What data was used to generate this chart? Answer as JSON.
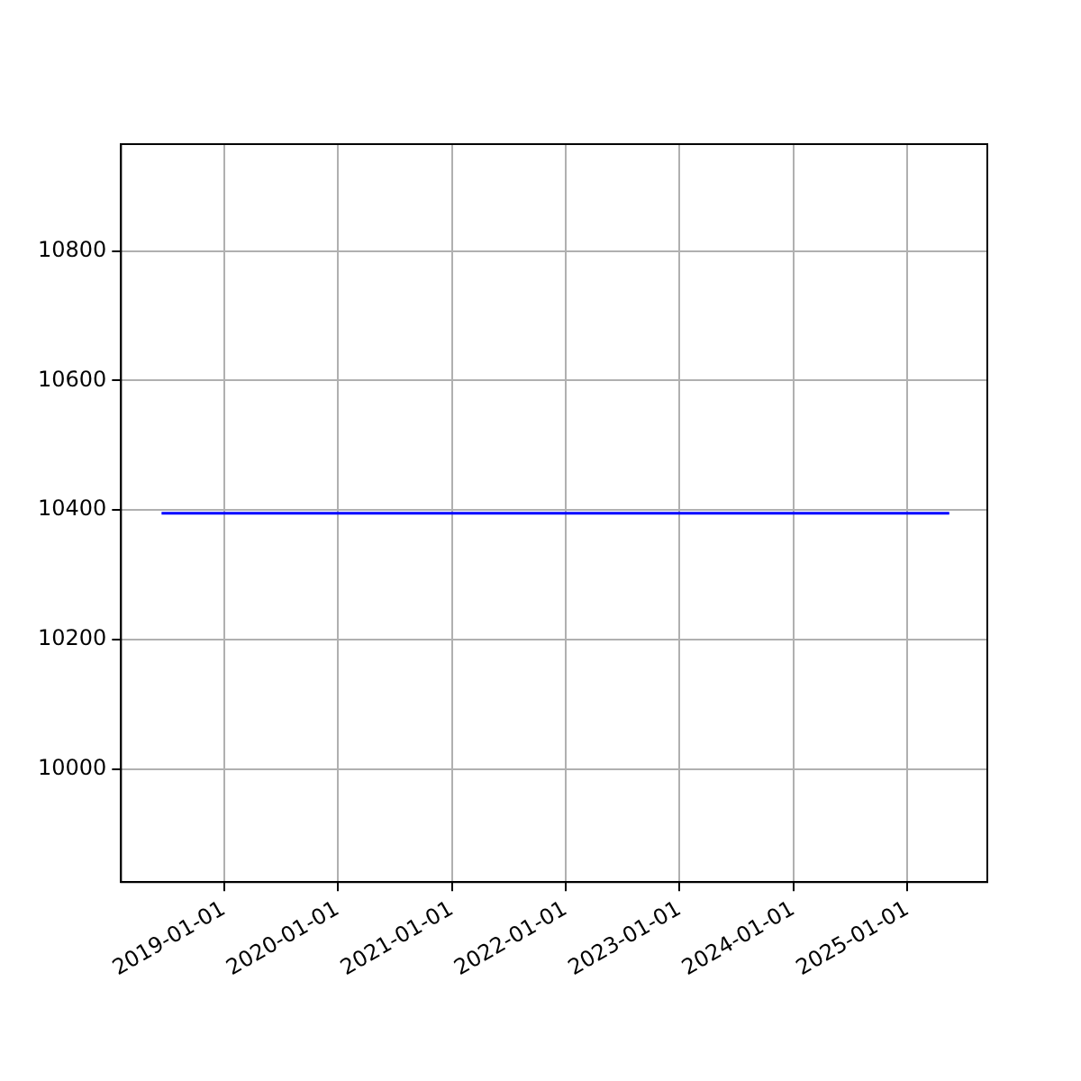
{
  "chart_data": {
    "type": "line",
    "x": [
      "2018-06-15",
      "2025-05-15"
    ],
    "series": [
      {
        "color": "#0000ff",
        "values": [
          10395,
          10395
        ]
      }
    ],
    "xlim": [
      "2018-02-05",
      "2025-09-14"
    ],
    "ylim": [
      9825,
      10965
    ],
    "xticks": [
      "2019-01-01",
      "2020-01-01",
      "2021-01-01",
      "2022-01-01",
      "2023-01-01",
      "2024-01-01",
      "2025-01-01"
    ],
    "yticks": [
      10000,
      10200,
      10400,
      10600,
      10800
    ],
    "grid": true,
    "marker": "none",
    "line_style": "solid",
    "legend": false
  }
}
